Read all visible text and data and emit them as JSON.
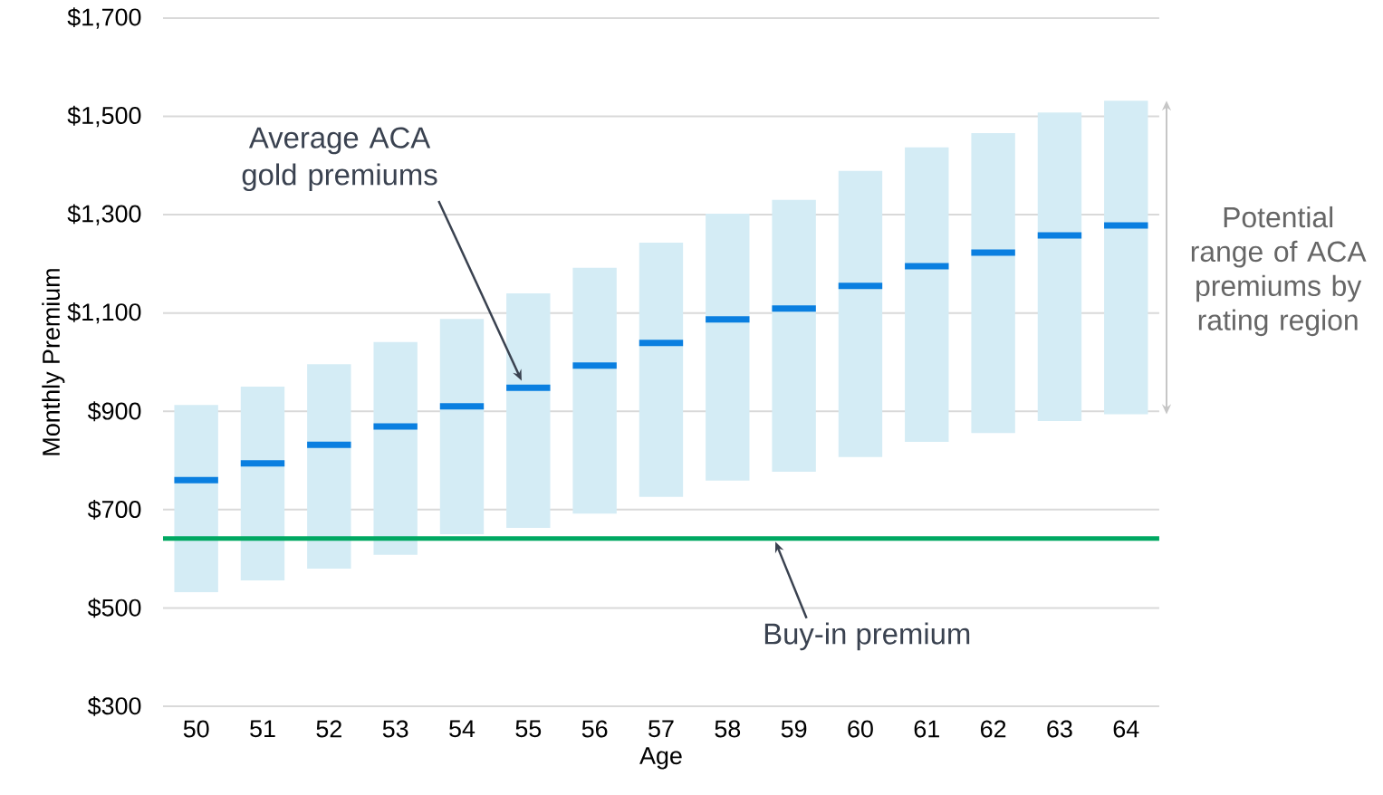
{
  "chart_data": {
    "type": "box",
    "xlabel": "Age",
    "ylabel": "Monthly Premium",
    "categories": [
      "50",
      "51",
      "52",
      "53",
      "54",
      "55",
      "56",
      "57",
      "58",
      "59",
      "60",
      "61",
      "62",
      "63",
      "64"
    ],
    "series": [
      {
        "color": "#d4ecf5",
        "boxes": [
          {
            "low": 532,
            "q1": 532,
            "median": 760,
            "q3": 913,
            "high": 913
          },
          {
            "low": 556,
            "q1": 556,
            "median": 794,
            "q3": 950,
            "high": 950
          },
          {
            "low": 580,
            "q1": 580,
            "median": 832,
            "q3": 996,
            "high": 996
          },
          {
            "low": 608,
            "q1": 608,
            "median": 869,
            "q3": 1041,
            "high": 1041
          },
          {
            "low": 650,
            "q1": 650,
            "median": 910,
            "q3": 1088,
            "high": 1088
          },
          {
            "low": 663,
            "q1": 663,
            "median": 948,
            "q3": 1140,
            "high": 1140
          },
          {
            "low": 692,
            "q1": 692,
            "median": 993,
            "q3": 1192,
            "high": 1192
          },
          {
            "low": 726,
            "q1": 726,
            "median": 1039,
            "q3": 1243,
            "high": 1243
          },
          {
            "low": 759,
            "q1": 759,
            "median": 1087,
            "q3": 1302,
            "high": 1302
          },
          {
            "low": 777,
            "q1": 777,
            "median": 1109,
            "q3": 1330,
            "high": 1330
          },
          {
            "low": 807,
            "q1": 807,
            "median": 1155,
            "q3": 1389,
            "high": 1389
          },
          {
            "low": 838,
            "q1": 838,
            "median": 1195,
            "q3": 1437,
            "high": 1437
          },
          {
            "low": 856,
            "q1": 856,
            "median": 1223,
            "q3": 1466,
            "high": 1466
          },
          {
            "low": 880,
            "q1": 880,
            "median": 1258,
            "q3": 1508,
            "high": 1508
          },
          {
            "low": 894,
            "q1": 894,
            "median": 1278,
            "q3": 1532,
            "high": 1532
          }
        ]
      }
    ],
    "ylim": [
      300,
      1700
    ],
    "yticks": [
      {
        "value": 300,
        "label": "$300"
      },
      {
        "value": 500,
        "label": "$500"
      },
      {
        "value": 700,
        "label": "$700"
      },
      {
        "value": 900,
        "label": "$900"
      },
      {
        "value": 1100,
        "label": "$1,100"
      },
      {
        "value": 1300,
        "label": "$1,300"
      },
      {
        "value": 1500,
        "label": "$1,500"
      },
      {
        "value": 1700,
        "label": "$1,700"
      }
    ],
    "grid": "y",
    "ref_lines": [
      {
        "axis": "y",
        "value": 641,
        "label": "Buy-in premium",
        "color": "#00a862"
      }
    ],
    "annotations": [
      "Average ACA gold premiums",
      "Potential range of ACA premiums by rating region"
    ]
  }
}
